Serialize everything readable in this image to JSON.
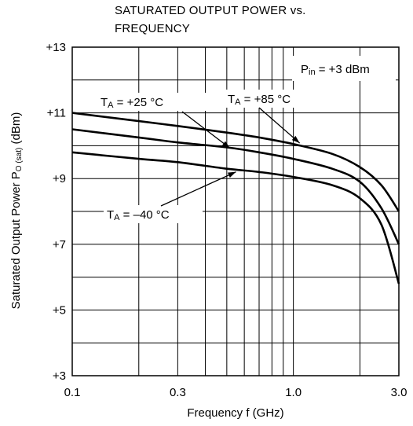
{
  "chart_data": {
    "type": "line",
    "title_lines": [
      "SATURATED OUTPUT POWER vs.",
      "FREQUENCY"
    ],
    "xlabel": "Frequency  f (GHz)",
    "ylabel_main": "Saturated Output Power  P",
    "ylabel_sub": "O (sat)",
    "ylabel_unit": " (dBm)",
    "x_scale": "log",
    "xlim": [
      0.1,
      3.0
    ],
    "ylim": [
      3,
      13
    ],
    "x_ticks": [
      {
        "value": 0.1,
        "label": "0.1"
      },
      {
        "value": 0.3,
        "label": "0.3"
      },
      {
        "value": 1.0,
        "label": "1.0"
      },
      {
        "value": 3.0,
        "label": "3.0"
      }
    ],
    "y_ticks": [
      {
        "value": 13,
        "label": "+13"
      },
      {
        "value": 11,
        "label": "+11"
      },
      {
        "value": 9,
        "label": "+9"
      },
      {
        "value": 7,
        "label": "+7"
      },
      {
        "value": 5,
        "label": "+5"
      },
      {
        "value": 3,
        "label": "+3"
      }
    ],
    "grid": true,
    "condition": {
      "main": "P",
      "sub": "in",
      "rest": " = +3 dBm"
    },
    "series": [
      {
        "name": "TA = +85 °C",
        "label_main": "T",
        "label_sub": "A",
        "label_rest": " = +85 °C",
        "points": [
          [
            0.1,
            11.0
          ],
          [
            0.2,
            10.75
          ],
          [
            0.3,
            10.6
          ],
          [
            0.5,
            10.4
          ],
          [
            0.7,
            10.25
          ],
          [
            1.0,
            10.05
          ],
          [
            1.5,
            9.75
          ],
          [
            2.0,
            9.35
          ],
          [
            2.5,
            8.8
          ],
          [
            3.0,
            8.0
          ]
        ]
      },
      {
        "name": "TA = +25 °C",
        "label_main": "T",
        "label_sub": "A",
        "label_rest": " = +25 °C",
        "points": [
          [
            0.1,
            10.5
          ],
          [
            0.2,
            10.25
          ],
          [
            0.3,
            10.1
          ],
          [
            0.5,
            9.95
          ],
          [
            0.7,
            9.8
          ],
          [
            1.0,
            9.6
          ],
          [
            1.5,
            9.3
          ],
          [
            2.0,
            8.9
          ],
          [
            2.5,
            8.1
          ],
          [
            3.0,
            7.0
          ]
        ]
      },
      {
        "name": "TA = -40 °C",
        "label_main": "T",
        "label_sub": "A",
        "label_rest": " = –40 °C",
        "points": [
          [
            0.1,
            9.8
          ],
          [
            0.2,
            9.6
          ],
          [
            0.3,
            9.5
          ],
          [
            0.5,
            9.3
          ],
          [
            0.7,
            9.2
          ],
          [
            1.0,
            9.05
          ],
          [
            1.5,
            8.8
          ],
          [
            2.0,
            8.4
          ],
          [
            2.5,
            7.6
          ],
          [
            3.0,
            5.8
          ]
        ]
      }
    ]
  }
}
